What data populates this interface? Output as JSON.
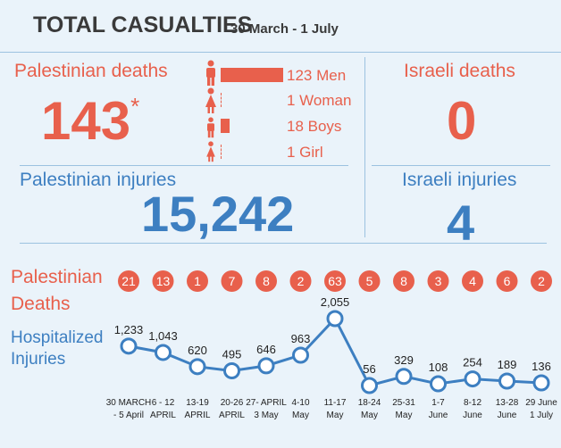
{
  "header": {
    "title": "TOTAL CASUALTIES",
    "subtitle": "30 March - 1 July"
  },
  "palestinian_deaths": {
    "label": "Palestinian deaths",
    "value": "143",
    "asterisk": "*",
    "breakdown": [
      {
        "label": "123 Men",
        "count": 123,
        "icon": "man-icon"
      },
      {
        "label": "1 Woman",
        "count": 1,
        "icon": "woman-icon"
      },
      {
        "label": "18 Boys",
        "count": 18,
        "icon": "boy-icon"
      },
      {
        "label": "1 Girl",
        "count": 1,
        "icon": "girl-icon"
      }
    ]
  },
  "israeli_deaths": {
    "label": "Israeli deaths",
    "value": "0"
  },
  "palestinian_injuries": {
    "label": "Palestinian injuries",
    "value": "15,242"
  },
  "israeli_injuries": {
    "label": "Israeli injuries",
    "value": "4"
  },
  "colors": {
    "red": "#e8604c",
    "blue": "#3d7fc1",
    "background": "#eaf3fa"
  },
  "chart_data": {
    "type": "line",
    "deaths_label": [
      "Palestinian",
      "Deaths"
    ],
    "injuries_label": [
      "Hospitalized",
      "Injuries"
    ],
    "categories": [
      [
        "30 MARCH",
        "- 5 April"
      ],
      [
        "6 - 12",
        "APRIL"
      ],
      [
        "13-19",
        "APRIL"
      ],
      [
        "20-26",
        "APRIL"
      ],
      [
        "27- APRIL",
        "3 May"
      ],
      [
        "4-10",
        "May"
      ],
      [
        "11-17",
        "May"
      ],
      [
        "18-24",
        "May"
      ],
      [
        "25-31",
        "May"
      ],
      [
        "1-7",
        "June"
      ],
      [
        "8-12",
        "June"
      ],
      [
        "13-28",
        "June"
      ],
      [
        "29 June",
        "1 July"
      ]
    ],
    "deaths": [
      21,
      13,
      1,
      7,
      8,
      2,
      63,
      5,
      8,
      3,
      4,
      6,
      2
    ],
    "injuries": [
      1233,
      1043,
      620,
      495,
      646,
      963,
      2055,
      56,
      329,
      108,
      254,
      189,
      136
    ],
    "injury_labels": [
      "1,233",
      "1,043",
      "620",
      "495",
      "646",
      "963",
      "2,055",
      "56",
      "329",
      "108",
      "254",
      "189",
      "136"
    ]
  }
}
